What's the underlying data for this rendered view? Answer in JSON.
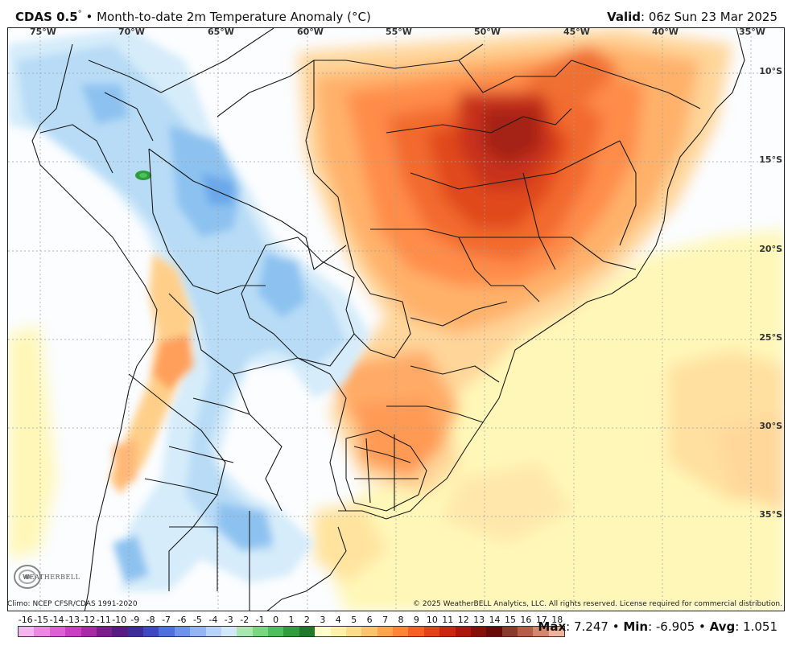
{
  "header": {
    "product": "CDAS 0.5",
    "degree": "°",
    "bullet": "•",
    "field": "Month-to-date 2m Temperature Anomaly (°C)",
    "valid_label": "Valid",
    "valid_value": ": 06z Sun 23 Mar 2025"
  },
  "axes": {
    "lon_labels": [
      "75°W",
      "70°W",
      "65°W",
      "60°W",
      "55°W",
      "50°W",
      "45°W",
      "40°W",
      "35°W"
    ],
    "lat_labels": [
      "10°S",
      "15°S",
      "20°S",
      "25°S",
      "30°S",
      "35°S"
    ]
  },
  "footer": {
    "climo": "Climo: NCEP CFSR/CDAS 1991-2020",
    "copyright": "© 2025 WeatherBELL Analytics, LLC. All rights reserved. License required for commercial distribution."
  },
  "logo_text": "WEATHERBELL",
  "colorbar": {
    "ticks": [
      "-16",
      "-15",
      "-14",
      "-13",
      "-12",
      "-11",
      "-10",
      "-9",
      "-8",
      "-7",
      "-6",
      "-5",
      "-4",
      "-3",
      "-2",
      "-1",
      "0",
      "1",
      "2",
      "3",
      "4",
      "5",
      "6",
      "7",
      "8",
      "9",
      "10",
      "11",
      "12",
      "13",
      "14",
      "15",
      "16",
      "17",
      "18"
    ],
    "colors": [
      "#f7b5f0",
      "#ee86e4",
      "#e05ed6",
      "#cc3dc6",
      "#a82aa9",
      "#7e1c8e",
      "#5a1a86",
      "#3e2c9e",
      "#3d48c2",
      "#4d6fe0",
      "#6d93ee",
      "#93b5f6",
      "#b7d3fa",
      "#d3e7fb",
      "#a6e8b0",
      "#78d87e",
      "#4cc05a",
      "#2e9e3c",
      "#1d7a2a",
      "#ffffcc",
      "#fff2a8",
      "#ffdd88",
      "#ffc46a",
      "#ffa64a",
      "#ff8533",
      "#f26322",
      "#e04414",
      "#c8290c",
      "#a81808",
      "#861008",
      "#6a0a08",
      "#8a3a2a",
      "#b85c4a",
      "#d8856e",
      "#efb39c"
    ]
  },
  "stats": {
    "max_label": "Max",
    "max_value": ": 7.247",
    "min_label": "Min",
    "min_value": ": -6.905",
    "avg_label": "Avg",
    "avg_value": ": 1.051",
    "sep": " • "
  }
}
